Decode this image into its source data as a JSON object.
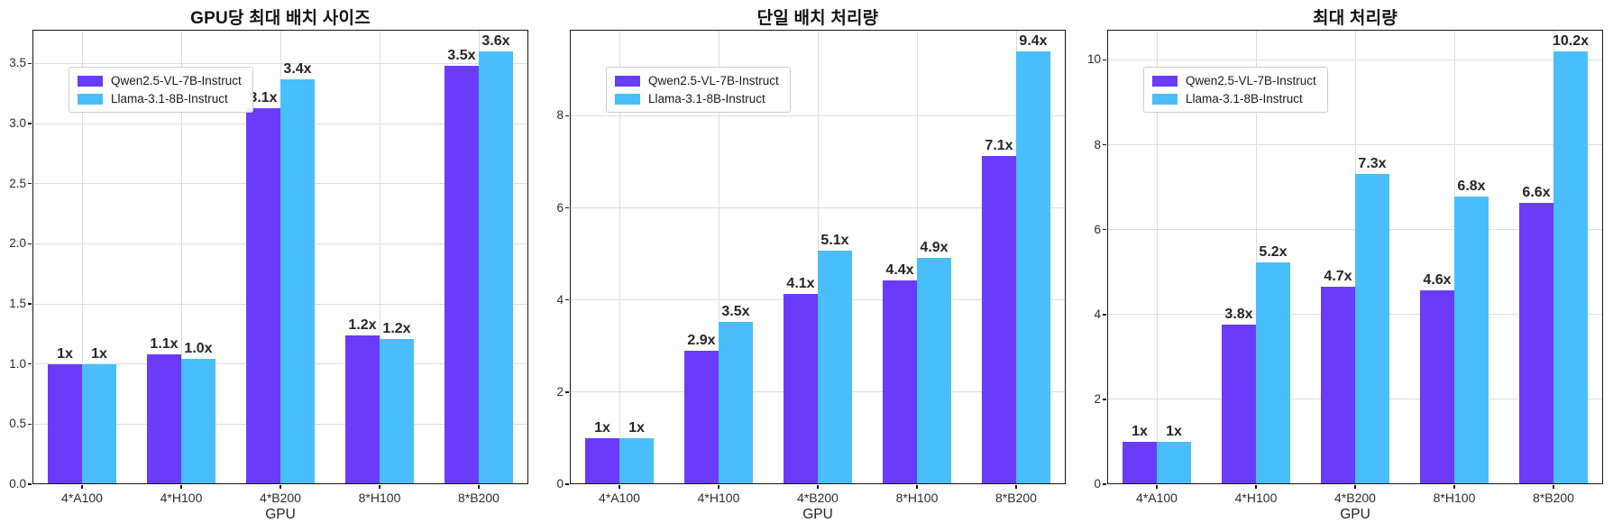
{
  "legend": [
    "Qwen2.5-VL-7B-Instruct",
    "Llama-3.1-8B-Instruct"
  ],
  "colors": {
    "qwen_purple": "#6A3BFB",
    "llama_cyan": "#49BEFB",
    "grid": "#dcdcdc",
    "spine": "#161616",
    "value_label_text": "#262626"
  },
  "chart_data": [
    {
      "type": "bar",
      "title": "GPU당 최대 배치 사이즈",
      "xlabel": "GPU",
      "ylabel": "",
      "categories": [
        "4*A100",
        "4*H100",
        "4*B200",
        "8*H100",
        "8*B200"
      ],
      "series": [
        {
          "name": "Qwen2.5-VL-7B-Instruct",
          "color": "#6A3BFB",
          "values": [
            1.0,
            1.08,
            3.13,
            1.24,
            3.48
          ],
          "labels": [
            "1x",
            "1.1x",
            "3.1x",
            "1.2x",
            "3.5x"
          ]
        },
        {
          "name": "Llama-3.1-8B-Instruct",
          "color": "#49BEFB",
          "values": [
            1.0,
            1.04,
            3.37,
            1.21,
            3.6
          ],
          "labels": [
            "1x",
            "1.0x",
            "3.4x",
            "1.2x",
            "3.6x"
          ]
        }
      ],
      "ylim": [
        0,
        3.78
      ],
      "yticks": [
        "0.0",
        "0.5",
        "1.0",
        "1.5",
        "2.0",
        "2.5",
        "3.0",
        "3.5"
      ],
      "grid": true,
      "legend_position": "upper left"
    },
    {
      "type": "bar",
      "title": "단일 배치 처리량",
      "xlabel": "GPU",
      "ylabel": "",
      "categories": [
        "4*A100",
        "4*H100",
        "4*B200",
        "8*H100",
        "8*B200"
      ],
      "series": [
        {
          "name": "Qwen2.5-VL-7B-Instruct",
          "color": "#6A3BFB",
          "values": [
            1.0,
            2.9,
            4.13,
            4.43,
            7.13
          ],
          "labels": [
            "1x",
            "2.9x",
            "4.1x",
            "4.4x",
            "7.1x"
          ]
        },
        {
          "name": "Llama-3.1-8B-Instruct",
          "color": "#49BEFB",
          "values": [
            1.0,
            3.53,
            5.08,
            4.92,
            9.4
          ],
          "labels": [
            "1x",
            "3.5x",
            "5.1x",
            "4.9x",
            "9.4x"
          ]
        }
      ],
      "ylim": [
        0,
        9.87
      ],
      "yticks": [
        "0",
        "2",
        "4",
        "6",
        "8"
      ],
      "grid": true,
      "legend_position": "upper left"
    },
    {
      "type": "bar",
      "title": "최대 처리량",
      "xlabel": "GPU",
      "ylabel": "",
      "categories": [
        "4*A100",
        "4*H100",
        "4*B200",
        "8*H100",
        "8*B200"
      ],
      "series": [
        {
          "name": "Qwen2.5-VL-7B-Instruct",
          "color": "#6A3BFB",
          "values": [
            1.0,
            3.77,
            4.65,
            4.57,
            6.62
          ],
          "labels": [
            "1x",
            "3.8x",
            "4.7x",
            "4.6x",
            "6.6x"
          ]
        },
        {
          "name": "Llama-3.1-8B-Instruct",
          "color": "#49BEFB",
          "values": [
            1.0,
            5.22,
            7.3,
            6.78,
            10.2
          ],
          "labels": [
            "1x",
            "5.2x",
            "7.3x",
            "6.8x",
            "10.2x"
          ]
        }
      ],
      "ylim": [
        0,
        10.71
      ],
      "yticks": [
        "0",
        "2",
        "4",
        "6",
        "8",
        "10"
      ],
      "grid": true,
      "legend_position": "upper left"
    }
  ]
}
